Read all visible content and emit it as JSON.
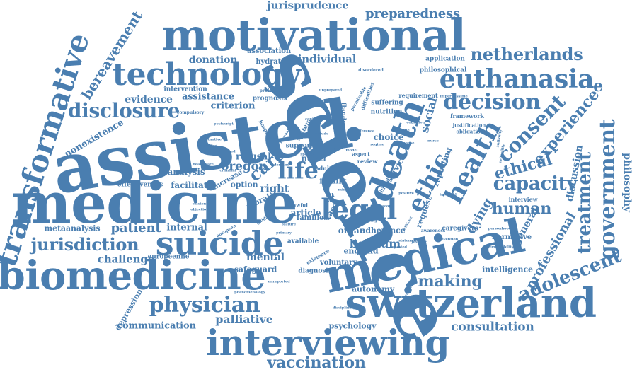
{
  "palette": {
    "word": "#4a7eb0",
    "word_dark": "#3f73a6",
    "background": "#ffffff"
  },
  "words": {
    "assisted": "assisted",
    "science": "science",
    "medicine": "medicine",
    "motivational": "motivational",
    "switzerland": "switzerland",
    "medical": "medical",
    "biomedicine": "biomedicine",
    "interviewing": "interviewing",
    "technology": "technology",
    "suicide": "suicide",
    "death": "death",
    "transformative": "transformative",
    "euthanasia": "euthanasia",
    "legal": "legal",
    "health": "health",
    "netherlands": "netherlands",
    "decision": "decision",
    "government": "government",
    "adolescent": "adolescent",
    "physician": "physician",
    "disclosure": "disclosure",
    "ethic": "ethic",
    "consent": "consent",
    "capacity": "capacity",
    "jurisdiction": "jurisdiction",
    "treatment": "treatment",
    "vaccination": "vaccination",
    "making": "making",
    "ethical": "ethical",
    "life": "life",
    "care": "care",
    "experience": "experience",
    "human": "human",
    "professional": "professional",
    "preparedness": "preparedness",
    "jurisprudence": "jurisprudence",
    "consultation": "consultation",
    "patient": "patient",
    "challenge": "challenge",
    "palliative": "palliative",
    "belgium": "belgium",
    "oregon": "oregon",
    "bereavement": "bereavement",
    "philosophy": "philosophy",
    "dying": "dying",
    "social": "social",
    "discussion": "discussion",
    "individual": "individual",
    "donation": "donation",
    "evidence": "evidence",
    "criterion": "criterion",
    "assistance": "assistance",
    "communication": "communication",
    "internal": "internal",
    "mental": "mental",
    "general": "general",
    "refusal": "refusal",
    "nonexistence": "nonexistence",
    "metaanalysis": "metaanalysis",
    "analysis": "analysis",
    "facilitate": "facilitate",
    "psychology": "psychology",
    "autonomy": "autonomy",
    "intelligence": "intelligence",
    "depression": "depression",
    "effectiveness": "effectiveness",
    "organ": "organ",
    "choice": "choice",
    "association": "association",
    "hydration": "hydration",
    "voluntary": "voluntary",
    "article": "article",
    "safeguard": "safeguard",
    "right": "right",
    "novel": "novel",
    "option": "option",
    "increase": "increase",
    "being": "being",
    "adherence": "adherence",
    "england": "england",
    "diagnosis": "diagnosis",
    "request": "request",
    "service": "service",
    "reporting": "reporting",
    "normative": "normative",
    "application": "application",
    "philosophical": "philosophical",
    "intervention": "intervention",
    "prognosis": "prognosis",
    "nutrition": "nutrition",
    "suffering": "suffering",
    "requirement": "requirement",
    "framework": "framework",
    "justification": "justification",
    "obligation": "obligation",
    "interview": "interview",
    "européenne": "européenne",
    "families": "families",
    "available": "available",
    "family": "family",
    "caregivers": "caregivers",
    "flanders": "flanders",
    "support": "support",
    "system": "system",
    "compulsory": "compulsory",
    "prolonging": "prolonging",
    "disordered": "disordered",
    "permissible": "permissible",
    "difficulties": "difficulties",
    "moral": "moral",
    "lawful": "lawful",
    "adult": "adult",
    "case": "case",
    "talk": "talk",
    "wale": "wale",
    "review": "review",
    "aspect": "aspect",
    "model": "model",
    "existential": "existential",
    "healthcare": "healthcare",
    "criminal": "criminal",
    "european": "european",
    "unreported": "unreported",
    "phenomenology": "phenomenology",
    "awareness": "awareness",
    "convention": "convention",
    "personhood": "personhood",
    "impermissible": "impermissible",
    "hospice": "hospice",
    "guidance": "guidance",
    "existence": "existence",
    "specific": "specific",
    "reference": "reference",
    "artificial": "artificial",
    "positive": "positive",
    "justified": "justified",
    "statement": "statement",
    "minor": "minor",
    "dignified": "dignified",
    "substantive": "substantive",
    "unprepared": "unprepared",
    "relevant": "relevant",
    "control": "control",
    "objection": "objection",
    "postscript": "postscript",
    "reported": "reported",
    "disciplinary": "disciplinary",
    "informal": "informal",
    "permissibility": "permissibility",
    "response": "response",
    "authority": "authority",
    "reliability": "reliability",
    "circumstance": "circumstance",
    "demand": "demand",
    "deceased": "deceased",
    "attitude": "attitude",
    "regime": "regime",
    "policy": "policy",
    "involving": "involving",
    "ethicist": "ethicist",
    "feature": "feature",
    "primary": "primary",
    "rule": "rule",
    "cognitive": "cognitive",
    "nurse": "nurse",
    "scope": "scope",
    "e": "e"
  }
}
